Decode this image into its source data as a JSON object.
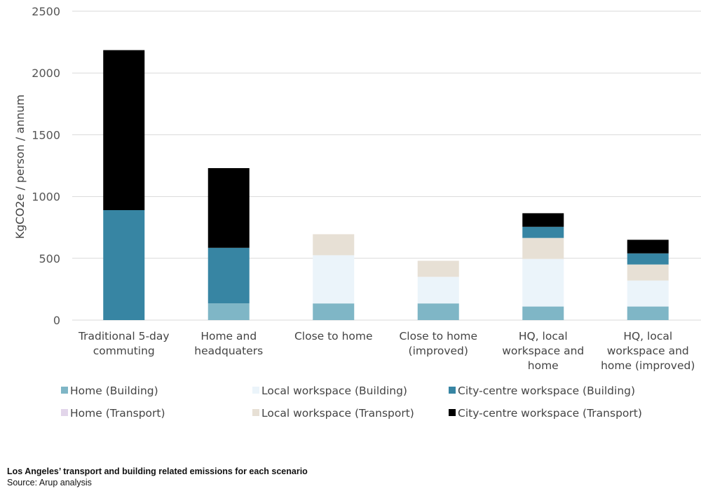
{
  "chart_data": {
    "type": "bar",
    "stacked": true,
    "title": "",
    "xlabel": "",
    "ylabel": "KgCO2e / person / annum",
    "ylim": [
      0,
      2500
    ],
    "yticks": [
      0,
      500,
      1000,
      1500,
      2000,
      2500
    ],
    "grid": true,
    "legend_position": "bottom",
    "categories": [
      [
        "Traditional 5-day",
        "commuting"
      ],
      [
        "Home and",
        "headquaters"
      ],
      [
        "Close to home"
      ],
      [
        "Close to home",
        "(improved)"
      ],
      [
        "HQ, local",
        "workspace and",
        "home"
      ],
      [
        "HQ, local",
        "workspace and",
        "home (improved)"
      ]
    ],
    "series": [
      {
        "name": "Home (Building)",
        "color": "#7fb6c6",
        "values": [
          0,
          135,
          135,
          135,
          110,
          110
        ]
      },
      {
        "name": "Home (Transport)",
        "color": "#e2d5ea",
        "values": [
          0,
          0,
          0,
          0,
          0,
          0
        ]
      },
      {
        "name": "Local workspace (Building)",
        "color": "#ebf4fa",
        "values": [
          0,
          0,
          390,
          215,
          385,
          210
        ]
      },
      {
        "name": "Local workspace (Transport)",
        "color": "#e7e0d5",
        "values": [
          0,
          0,
          170,
          130,
          170,
          130
        ]
      },
      {
        "name": "City-centre workspace (Building)",
        "color": "#3785a3",
        "values": [
          890,
          450,
          0,
          0,
          90,
          90
        ]
      },
      {
        "name": "City-centre workspace (Transport)",
        "color": "#000000",
        "values": [
          1295,
          645,
          0,
          0,
          110,
          110
        ]
      }
    ],
    "legend_order": [
      "Home (Building)",
      "Local workspace (Building)",
      "City-centre workspace (Building)",
      "Home (Transport)",
      "Local workspace (Transport)",
      "City-centre workspace (Transport)"
    ]
  },
  "caption": {
    "title": "Los Angeles’ transport and building related emissions for each scenario",
    "source": "Source: Arup analysis"
  }
}
